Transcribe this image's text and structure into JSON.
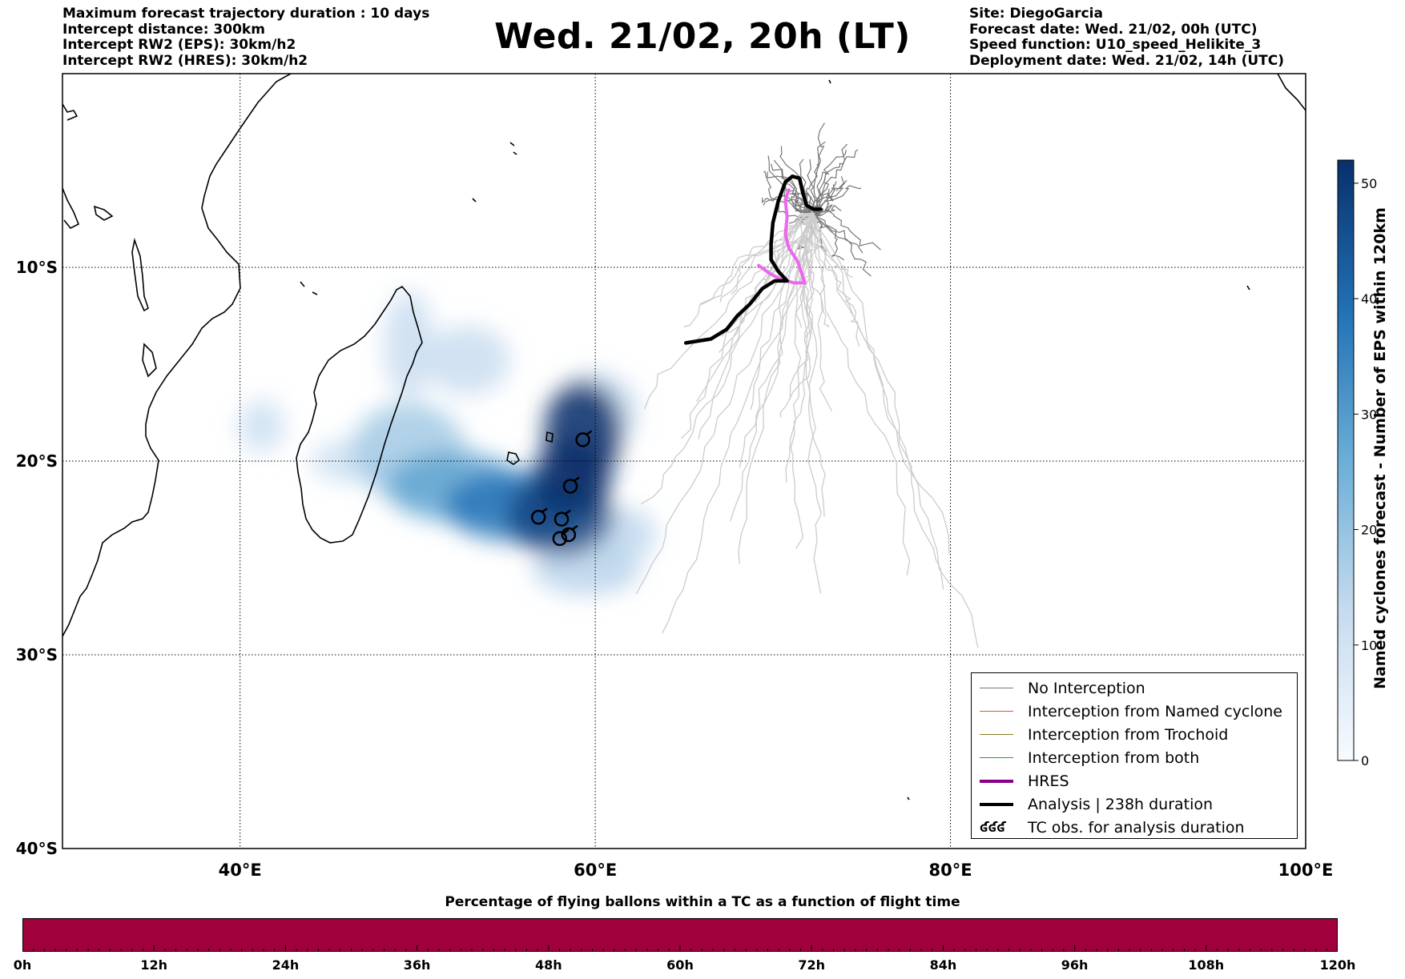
{
  "header": {
    "title": "Wed. 21/02, 20h (LT)",
    "left_lines": [
      "Maximum forecast trajectory duration : 10 days",
      "Intercept distance: 300km",
      "Intercept RW2 (EPS):  30km/h2",
      "Intercept RW2 (HRES): 30km/h2"
    ],
    "right_lines": [
      "Site: DiegoGarcia",
      "Forecast date: Wed. 21/02, 00h (UTC)",
      "Speed function: U10_speed_Helikite_3",
      "Deployment date: Wed. 21/02, 14h (UTC)"
    ]
  },
  "map": {
    "extent": {
      "lon_min": 30,
      "lon_max": 100,
      "lat_min": -40,
      "lat_max": 0
    },
    "lat_labels": [
      {
        "lat": -10,
        "text": "10°S"
      },
      {
        "lat": -20,
        "text": "20°S"
      },
      {
        "lat": -30,
        "text": "30°S"
      },
      {
        "lat": -40,
        "text": "40°S"
      }
    ],
    "lon_labels": [
      {
        "lon": 40,
        "text": "40°E"
      },
      {
        "lon": 60,
        "text": "60°E"
      },
      {
        "lon": 80,
        "text": "80°E"
      },
      {
        "lon": 100,
        "text": "100°E"
      }
    ],
    "colors": {
      "hres": "#ee66ee",
      "analysis": "#000000",
      "no_interception": "#777777",
      "ensemble_light": "#cccccc",
      "density_base": "#08306b"
    }
  },
  "analysis_track": [
    [
      65.1,
      -13.9
    ],
    [
      66.5,
      -13.7
    ],
    [
      67.4,
      -13.2
    ],
    [
      68.0,
      -12.5
    ],
    [
      68.7,
      -11.9
    ],
    [
      69.4,
      -11.1
    ],
    [
      70.1,
      -10.7
    ],
    [
      70.8,
      -10.7
    ],
    [
      70.3,
      -10.2
    ],
    [
      69.9,
      -9.6
    ],
    [
      69.9,
      -8.8
    ],
    [
      70.0,
      -7.7
    ],
    [
      70.3,
      -6.6
    ],
    [
      70.7,
      -5.6
    ],
    [
      71.1,
      -5.3
    ],
    [
      71.5,
      -5.4
    ],
    [
      71.7,
      -6.2
    ],
    [
      71.9,
      -6.8
    ],
    [
      72.3,
      -7.0
    ],
    [
      72.7,
      -7.0
    ]
  ],
  "hres_track": [
    [
      69.2,
      -9.9
    ],
    [
      69.8,
      -10.3
    ],
    [
      70.4,
      -10.6
    ],
    [
      71.2,
      -10.8
    ],
    [
      71.8,
      -10.8
    ],
    [
      71.4,
      -9.7
    ],
    [
      70.9,
      -9.0
    ],
    [
      70.7,
      -8.3
    ],
    [
      70.8,
      -7.4
    ],
    [
      70.7,
      -6.5
    ],
    [
      70.9,
      -6.0
    ]
  ],
  "tc_obs": [
    [
      59.3,
      -18.9
    ],
    [
      58.6,
      -21.3
    ],
    [
      56.8,
      -22.9
    ],
    [
      58.1,
      -23.0
    ],
    [
      58.0,
      -24.0
    ],
    [
      58.5,
      -23.8
    ]
  ],
  "density_blobs": [
    {
      "lon": 59.3,
      "lat": -18.5,
      "rx": 2.2,
      "ry": 2.6,
      "level": 50
    },
    {
      "lon": 58.7,
      "lat": -20.8,
      "rx": 2.2,
      "ry": 2.0,
      "level": 44
    },
    {
      "lon": 58.0,
      "lat": -22.8,
      "rx": 3.0,
      "ry": 2.1,
      "level": 40
    },
    {
      "lon": 55.3,
      "lat": -22.3,
      "rx": 3.8,
      "ry": 1.8,
      "level": 30
    },
    {
      "lon": 52.0,
      "lat": -21.3,
      "rx": 3.8,
      "ry": 1.8,
      "level": 20
    },
    {
      "lon": 49.5,
      "lat": -19.5,
      "rx": 3.2,
      "ry": 2.5,
      "level": 10
    },
    {
      "lon": 52.8,
      "lat": -14.8,
      "rx": 2.4,
      "ry": 1.8,
      "level": 4
    },
    {
      "lon": 49.5,
      "lat": -14.0,
      "rx": 1.4,
      "ry": 2.8,
      "level": 4
    },
    {
      "lon": 46.2,
      "lat": -20.0,
      "rx": 2.2,
      "ry": 1.1,
      "level": 3
    },
    {
      "lon": 41.2,
      "lat": -18.2,
      "rx": 1.3,
      "ry": 1.4,
      "level": 3
    },
    {
      "lon": 59.5,
      "lat": -25.6,
      "rx": 3.0,
      "ry": 1.3,
      "level": 7
    },
    {
      "lon": 61.6,
      "lat": -23.8,
      "rx": 1.8,
      "ry": 1.4,
      "level": 6
    },
    {
      "lon": 60.0,
      "lat": -17.4,
      "rx": 2.4,
      "ry": 2.0,
      "level": 5
    }
  ],
  "colorbar": {
    "title": "Named cyclones forecast - Number of EPS within 120km",
    "ticks": [
      "0",
      "10",
      "20",
      "30",
      "40",
      "50"
    ],
    "tick_values": [
      0,
      10,
      20,
      30,
      40,
      50
    ],
    "max": 52,
    "colors": [
      "#f7fbff",
      "#c6dbef",
      "#6baed6",
      "#2171b5",
      "#08306b"
    ]
  },
  "legend": {
    "items": [
      {
        "label": "No Interception",
        "color": "#777777",
        "width": 1
      },
      {
        "label": "Interception from Named cyclone",
        "color": "#e8501a",
        "width": 1.5
      },
      {
        "label": "Interception from Trochoid",
        "color": "#8a7a1e",
        "width": 1.5
      },
      {
        "label": "Interception from both",
        "color": "#2a9a2a",
        "width": 1.5
      },
      {
        "label": "HRES",
        "color": "#8b008b",
        "width": 4
      },
      {
        "label": "Analysis | 238h duration",
        "color": "#000000",
        "width": 4
      }
    ],
    "tc_symbol": "ʛʛʛ",
    "tc_label": "TC obs. for analysis duration"
  },
  "flight_bar": {
    "title": "Percentage of flying ballons within a TC as a function of flight time",
    "color": "#a0003c",
    "ticks": [
      "0h",
      "12h",
      "24h",
      "36h",
      "48h",
      "60h",
      "72h",
      "84h",
      "96h",
      "108h",
      "120h"
    ]
  }
}
